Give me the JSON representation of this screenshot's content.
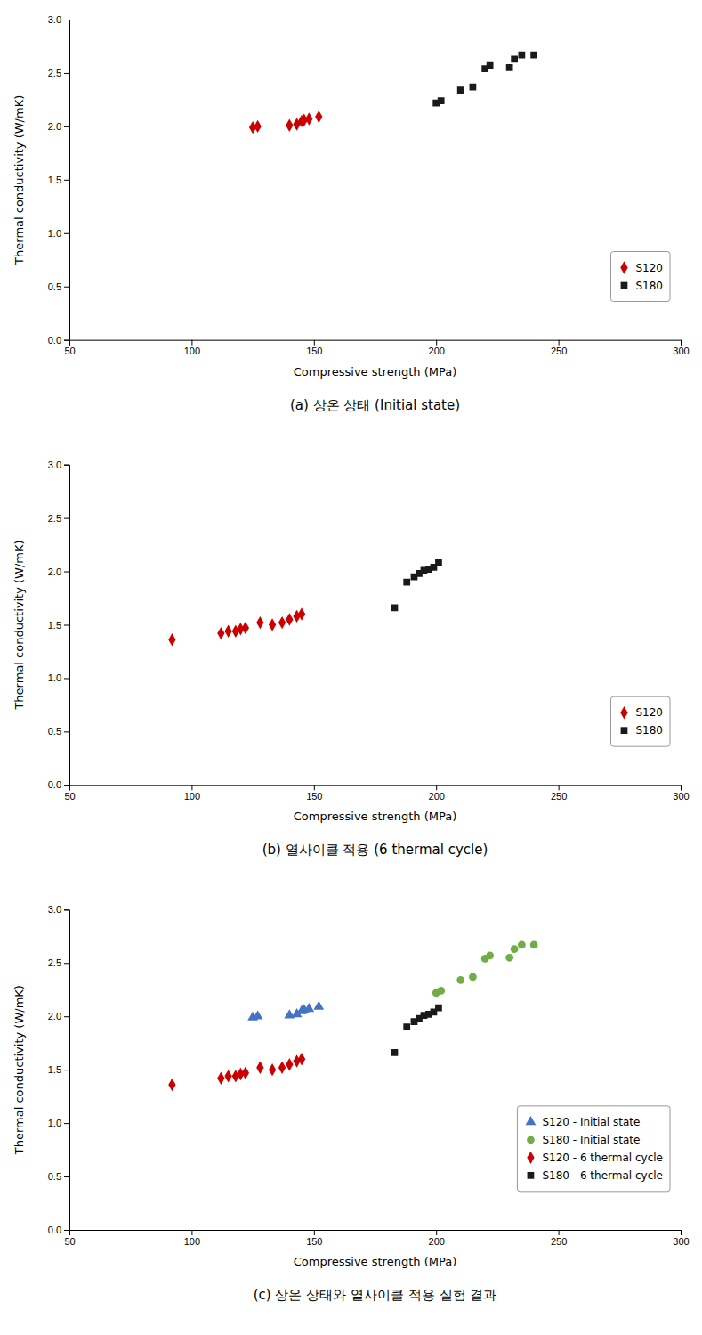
{
  "chart_data": [
    {
      "type": "scatter",
      "title": "(a) 상온 상태 (Initial state)",
      "xlabel": "Compressive strength (MPa)",
      "ylabel": "Thermal conductivity (W/mK)",
      "xlim": [
        50,
        300
      ],
      "ylim": [
        0.0,
        3.0
      ],
      "xticks": [
        50,
        100,
        150,
        200,
        250,
        300
      ],
      "yticks": [
        {
          "value": 0.0,
          "label": "0.0"
        },
        0.5,
        {
          "value": 1.0,
          "label": "1.0"
        },
        1.5,
        {
          "value": 2.0,
          "label": "2.0"
        },
        2.5,
        {
          "value": 3.0,
          "label": "3.0"
        }
      ],
      "grid": false,
      "legend": "lower right",
      "series": [
        {
          "name": "S120",
          "color": "#cc0000",
          "marker": "diamond",
          "x": [
            125,
            127,
            140,
            143,
            145,
            146,
            148,
            152
          ],
          "values": [
            1.99,
            2.0,
            2.01,
            2.02,
            2.05,
            2.06,
            2.07,
            2.09
          ]
        },
        {
          "name": "S180",
          "color": "#1a1a1a",
          "marker": "square",
          "x": [
            200,
            202,
            210,
            215,
            220,
            222,
            230,
            232,
            235,
            240
          ],
          "values": [
            2.22,
            2.24,
            2.34,
            2.37,
            2.54,
            2.57,
            2.55,
            2.63,
            2.67,
            2.67
          ]
        }
      ]
    },
    {
      "type": "scatter",
      "title": "(b) 열사이클 적용 (6 thermal cycle)",
      "xlabel": "Compressive strength (MPa)",
      "ylabel": "Thermal conductivity (W/mK)",
      "xlim": [
        50,
        300
      ],
      "ylim": [
        0.0,
        3.0
      ],
      "xticks": [
        50,
        100,
        150,
        200,
        250,
        300
      ],
      "yticks": [
        {
          "value": 0.0,
          "label": "0.0"
        },
        0.5,
        {
          "value": 1.0,
          "label": "1.0"
        },
        1.5,
        {
          "value": 2.0,
          "label": "2.0"
        },
        2.5,
        {
          "value": 3.0,
          "label": "3.0"
        }
      ],
      "grid": false,
      "legend": "lower right",
      "series": [
        {
          "name": "S120",
          "color": "#cc0000",
          "marker": "diamond",
          "x": [
            92,
            112,
            115,
            118,
            120,
            122,
            128,
            133,
            137,
            140,
            143,
            145
          ],
          "values": [
            1.36,
            1.42,
            1.44,
            1.44,
            1.46,
            1.47,
            1.52,
            1.5,
            1.52,
            1.55,
            1.58,
            1.6
          ]
        },
        {
          "name": "S180",
          "color": "#1a1a1a",
          "marker": "square",
          "x": [
            183,
            188,
            191,
            193,
            195,
            197,
            199,
            201
          ],
          "values": [
            1.66,
            1.9,
            1.95,
            1.98,
            2.01,
            2.02,
            2.04,
            2.08
          ]
        }
      ]
    },
    {
      "type": "scatter",
      "title": "(c) 상온 상태와 열사이클 적용 실험 결과",
      "xlabel": "Compressive strength (MPa)",
      "ylabel": "Thermal conductivity (W/mK)",
      "xlim": [
        50,
        300
      ],
      "ylim": [
        0.0,
        3.0
      ],
      "xticks": [
        50,
        100,
        150,
        200,
        250,
        300
      ],
      "yticks": [
        {
          "value": 0.0,
          "label": "0.0"
        },
        0.5,
        {
          "value": 1.0,
          "label": "1.0"
        },
        1.5,
        {
          "value": 2.0,
          "label": "2.0"
        },
        2.5,
        {
          "value": 3.0,
          "label": "3.0"
        }
      ],
      "grid": false,
      "legend": "lower right",
      "series": [
        {
          "name": "S120 - Initial state",
          "color": "#4472c4",
          "marker": "triangle",
          "x": [
            125,
            127,
            140,
            143,
            145,
            146,
            148,
            152
          ],
          "values": [
            1.99,
            2.0,
            2.01,
            2.02,
            2.05,
            2.06,
            2.07,
            2.09
          ]
        },
        {
          "name": "S180 - Initial state",
          "color": "#70ad47",
          "marker": "circle",
          "x": [
            200,
            202,
            210,
            215,
            220,
            222,
            230,
            232,
            235,
            240
          ],
          "values": [
            2.22,
            2.24,
            2.34,
            2.37,
            2.54,
            2.57,
            2.55,
            2.63,
            2.67,
            2.67
          ]
        },
        {
          "name": "S120 - 6 thermal cycle",
          "color": "#cc0000",
          "marker": "diamond",
          "x": [
            92,
            112,
            115,
            118,
            120,
            122,
            128,
            133,
            137,
            140,
            143,
            145
          ],
          "values": [
            1.36,
            1.42,
            1.44,
            1.44,
            1.46,
            1.47,
            1.52,
            1.5,
            1.52,
            1.55,
            1.58,
            1.6
          ]
        },
        {
          "name": "S180 - 6 thermal cycle",
          "color": "#1a1a1a",
          "marker": "square",
          "x": [
            183,
            188,
            191,
            193,
            195,
            197,
            199,
            201
          ],
          "values": [
            1.66,
            1.9,
            1.95,
            1.98,
            2.01,
            2.02,
            2.04,
            2.08
          ]
        }
      ]
    }
  ]
}
